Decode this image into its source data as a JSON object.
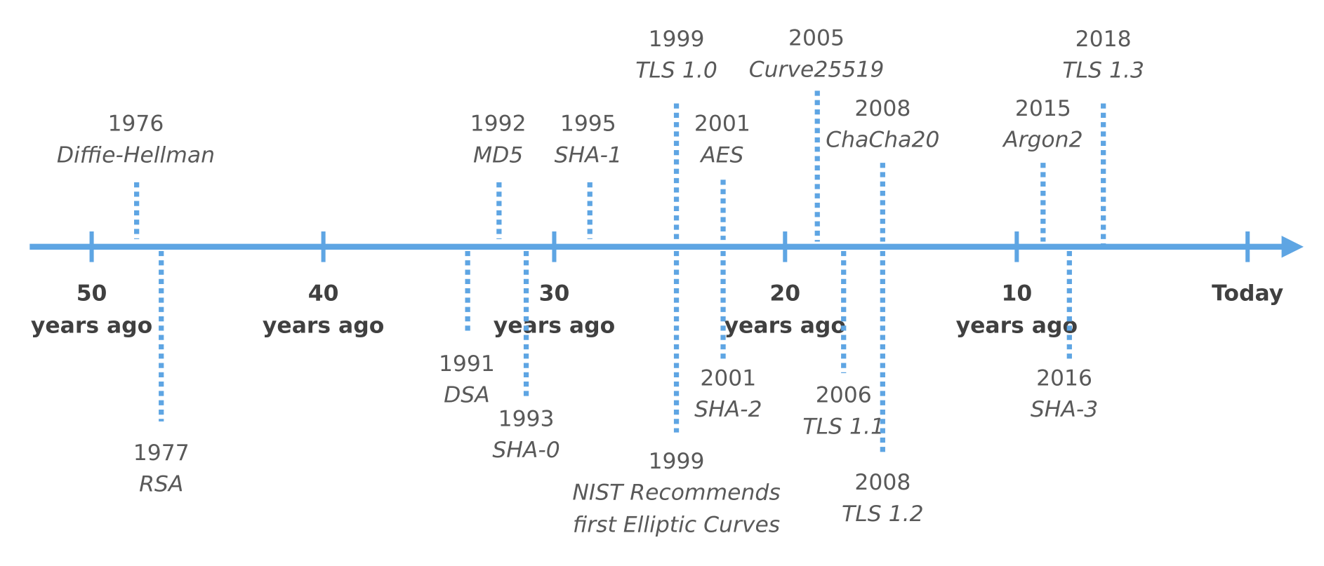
{
  "axis": {
    "ticks": [
      {
        "label": "50",
        "sub": "years ago"
      },
      {
        "label": "40",
        "sub": "years ago"
      },
      {
        "label": "30",
        "sub": "years ago"
      },
      {
        "label": "20",
        "sub": "years ago"
      },
      {
        "label": "10",
        "sub": "years ago"
      },
      {
        "label": "Today"
      }
    ]
  },
  "events": [
    {
      "year": "1976",
      "name": [
        "Diffie-Hellman"
      ]
    },
    {
      "year": "1977",
      "name": [
        "RSA"
      ]
    },
    {
      "year": "1991",
      "name": [
        "DSA"
      ]
    },
    {
      "year": "1992",
      "name": [
        "MD5"
      ]
    },
    {
      "year": "1993",
      "name": [
        "SHA-0"
      ]
    },
    {
      "year": "1995",
      "name": [
        "SHA-1"
      ]
    },
    {
      "year": "1999",
      "name": [
        "TLS 1.0"
      ]
    },
    {
      "year": "1999",
      "name": [
        "NIST Recommends",
        "first Elliptic Curves"
      ]
    },
    {
      "year": "2001",
      "name": [
        "AES"
      ]
    },
    {
      "year": "2001",
      "name": [
        "SHA-2"
      ]
    },
    {
      "year": "2005",
      "name": [
        "Curve25519"
      ]
    },
    {
      "year": "2006",
      "name": [
        "TLS 1.1"
      ]
    },
    {
      "year": "2008",
      "name": [
        "ChaCha20"
      ]
    },
    {
      "year": "2008",
      "name": [
        "TLS 1.2"
      ]
    },
    {
      "year": "2015",
      "name": [
        "Argon2"
      ]
    },
    {
      "year": "2016",
      "name": [
        "SHA-3"
      ]
    },
    {
      "year": "2018",
      "name": [
        "TLS 1.3"
      ]
    }
  ]
}
